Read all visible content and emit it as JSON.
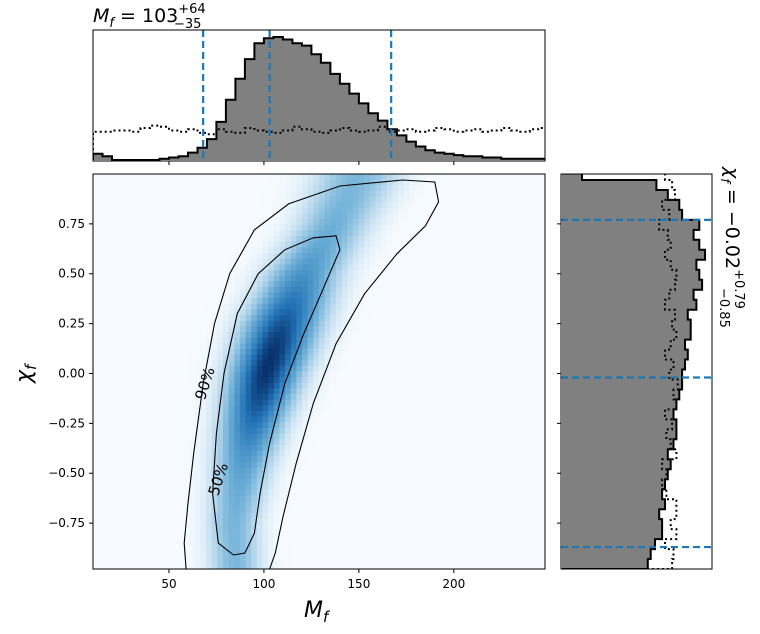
{
  "chart_data": [
    {
      "panel": "joint",
      "type": "heatmap",
      "xlabel": "M_f",
      "ylabel": "χ_f",
      "xlim": [
        10,
        248
      ],
      "ylim": [
        -0.98,
        1.0
      ],
      "xticks": [
        50,
        100,
        150,
        200
      ],
      "yticks": [
        -0.75,
        -0.5,
        -0.25,
        0.0,
        0.25,
        0.5,
        0.75
      ],
      "ytick_labels": [
        "−0.75",
        "−0.50",
        "−0.25",
        "0.00",
        "0.25",
        "0.50",
        "0.75"
      ],
      "colormap": "Blues",
      "density_ridge": [
        {
          "y": -0.98,
          "x": 85,
          "sx": 9
        },
        {
          "y": -0.75,
          "x": 84,
          "sx": 9
        },
        {
          "y": -0.5,
          "x": 88,
          "sx": 10
        },
        {
          "y": -0.25,
          "x": 94,
          "sx": 11
        },
        {
          "y": 0.0,
          "x": 101,
          "sx": 12
        },
        {
          "y": 0.25,
          "x": 110,
          "sx": 13
        },
        {
          "y": 0.5,
          "x": 121,
          "sx": 13
        },
        {
          "y": 0.75,
          "x": 137,
          "sx": 13
        },
        {
          "y": 1.0,
          "x": 150,
          "sx": 15
        }
      ],
      "peak": {
        "x": 102,
        "y": 0.05
      },
      "contours": [
        {
          "level": "90%",
          "label": "90%",
          "label_at": {
            "x": 69,
            "y": -0.05
          },
          "points": [
            [
              59,
              -0.98
            ],
            [
              58,
              -0.85
            ],
            [
              60,
              -0.65
            ],
            [
              63,
              -0.4
            ],
            [
              68,
              -0.05
            ],
            [
              74,
              0.25
            ],
            [
              82,
              0.5
            ],
            [
              95,
              0.72
            ],
            [
              113,
              0.85
            ],
            [
              140,
              0.94
            ],
            [
              173,
              0.97
            ],
            [
              190,
              0.96
            ],
            [
              192,
              0.86
            ],
            [
              185,
              0.74
            ],
            [
              170,
              0.6
            ],
            [
              153,
              0.4
            ],
            [
              138,
              0.15
            ],
            [
              126,
              -0.15
            ],
            [
              117,
              -0.45
            ],
            [
              110,
              -0.72
            ],
            [
              106,
              -0.9
            ],
            [
              103,
              -0.98
            ]
          ]
        },
        {
          "level": "50%",
          "label": "50%",
          "label_at": {
            "x": 76,
            "y": -0.53
          },
          "points": [
            [
              84,
              -0.91
            ],
            [
              76,
              -0.85
            ],
            [
              73,
              -0.6
            ],
            [
              75,
              -0.3
            ],
            [
              79,
              0.0
            ],
            [
              86,
              0.3
            ],
            [
              97,
              0.5
            ],
            [
              111,
              0.62
            ],
            [
              126,
              0.68
            ],
            [
              138,
              0.69
            ],
            [
              140,
              0.62
            ],
            [
              131,
              0.42
            ],
            [
              121,
              0.2
            ],
            [
              111,
              -0.05
            ],
            [
              103,
              -0.35
            ],
            [
              98,
              -0.6
            ],
            [
              95,
              -0.8
            ],
            [
              90,
              -0.9
            ],
            [
              84,
              -0.91
            ]
          ]
        }
      ]
    },
    {
      "panel": "marginal-top",
      "type": "step-histogram",
      "title": "M_f = 103^{+64}_{−35}",
      "title_parts": {
        "symbol": "M",
        "sub": "f",
        "eq": " = 103",
        "sup": "+64",
        "lo": "−35"
      },
      "xlim": [
        10,
        248
      ],
      "bin_edges_start": 10,
      "bin_width": 5,
      "posterior": [
        0.05,
        0.03,
        0,
        0,
        0,
        0,
        0,
        0.01,
        0.02,
        0.03,
        0.06,
        0.1,
        0.17,
        0.31,
        0.49,
        0.66,
        0.82,
        0.95,
        0.99,
        1.0,
        0.98,
        0.95,
        0.93,
        0.86,
        0.79,
        0.7,
        0.62,
        0.54,
        0.46,
        0.38,
        0.32,
        0.25,
        0.2,
        0.15,
        0.11,
        0.08,
        0.06,
        0.05,
        0.04,
        0.03,
        0.03,
        0.02,
        0.02,
        0.01,
        0.01,
        0.01,
        0.01,
        0.01
      ],
      "prior": [
        0.23,
        0.23,
        0.24,
        0.24,
        0.23,
        0.26,
        0.28,
        0.27,
        0.24,
        0.23,
        0.25,
        0.22,
        0.21,
        0.25,
        0.23,
        0.22,
        0.26,
        0.24,
        0.23,
        0.22,
        0.24,
        0.27,
        0.25,
        0.23,
        0.22,
        0.24,
        0.26,
        0.24,
        0.23,
        0.24,
        0.27,
        0.23,
        0.24,
        0.25,
        0.23,
        0.24,
        0.26,
        0.25,
        0.23,
        0.24,
        0.25,
        0.23,
        0.24,
        0.26,
        0.24,
        0.23,
        0.25,
        0.26
      ],
      "quantiles": [
        68,
        103,
        167
      ]
    },
    {
      "panel": "marginal-right",
      "type": "step-histogram",
      "title": "χ_f = −0.02^{+0.79}_{−0.85}",
      "title_parts": {
        "symbol": "χ",
        "sub": "f",
        "eq": " = −0.02",
        "sup": "+0.79",
        "lo": "−0.85"
      },
      "ylim": [
        -0.98,
        1.0
      ],
      "bin_edges_start": -0.98,
      "bin_width": 0.05,
      "posterior": [
        0.6,
        0.62,
        0.65,
        0.7,
        0.7,
        0.68,
        0.72,
        0.7,
        0.72,
        0.74,
        0.76,
        0.74,
        0.78,
        0.8,
        0.8,
        0.78,
        0.8,
        0.82,
        0.84,
        0.84,
        0.86,
        0.88,
        0.86,
        0.9,
        0.9,
        0.88,
        0.94,
        0.92,
        0.98,
        0.96,
        0.94,
        1.0,
        0.96,
        0.92,
        0.96,
        0.84,
        0.82,
        0.74,
        0.66,
        0.14
      ],
      "prior": [
        0.77,
        0.78,
        0.72,
        0.8,
        0.76,
        0.8,
        0.8,
        0.73,
        0.7,
        0.73,
        0.7,
        0.8,
        0.76,
        0.73,
        0.77,
        0.72,
        0.8,
        0.78,
        0.81,
        0.75,
        0.78,
        0.72,
        0.76,
        0.8,
        0.77,
        0.79,
        0.72,
        0.75,
        0.79,
        0.8,
        0.76,
        0.72,
        0.76,
        0.74,
        0.68,
        0.75,
        0.7,
        0.79,
        0.77,
        0.72
      ],
      "quantiles": [
        -0.87,
        -0.02,
        0.77
      ]
    }
  ],
  "colors": {
    "hist_fill": "#808080",
    "hist_edge": "#000000",
    "quantile_line": "#1f77b4",
    "contour": "#000000",
    "heatmap_low": "#f7fbff",
    "heatmap_high": "#08306b"
  }
}
